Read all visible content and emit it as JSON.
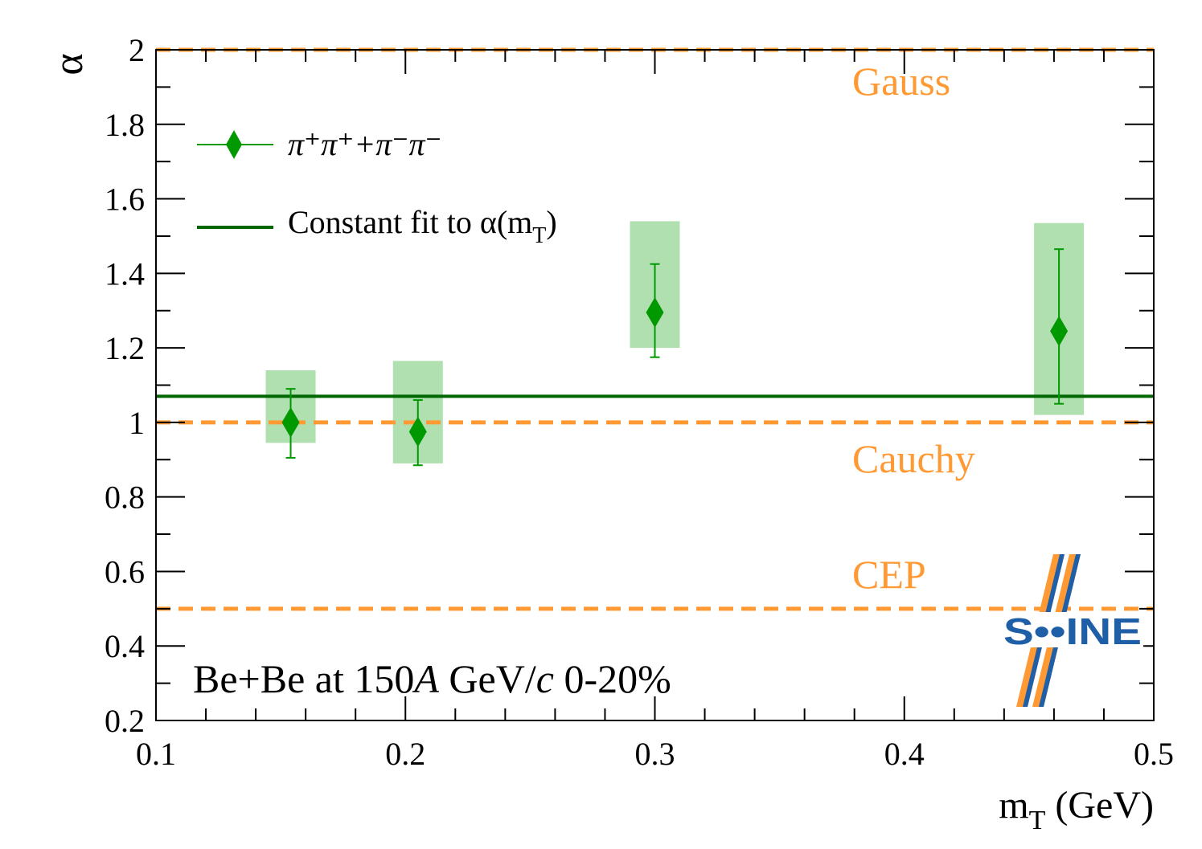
{
  "chart_data": {
    "type": "scatter",
    "xlabel": "m",
    "xlabel_sub": "T",
    "xlabel_unit": " (GeV)",
    "ylabel": "α",
    "xlim": [
      0.1,
      0.5
    ],
    "ylim": [
      0.2,
      2.0
    ],
    "x_ticks": [
      "0.1",
      "0.2",
      "0.3",
      "0.4",
      "0.5"
    ],
    "y_ticks": [
      "0.2",
      "0.4",
      "0.6",
      "0.8",
      "1",
      "1.2",
      "1.4",
      "1.6",
      "1.8",
      "2"
    ],
    "series": [
      {
        "name": "π⁺π⁺+π⁻π⁻",
        "color": "#009900",
        "syst_color": "#b0e0b0",
        "points": [
          {
            "x": 0.154,
            "y": 1.0,
            "stat_lo": 0.905,
            "stat_hi": 1.09,
            "sys_lo": 0.945,
            "sys_hi": 1.14,
            "sys_x_lo": 0.144,
            "sys_x_hi": 0.164
          },
          {
            "x": 0.205,
            "y": 0.975,
            "stat_lo": 0.885,
            "stat_hi": 1.06,
            "sys_lo": 0.89,
            "sys_hi": 1.165,
            "sys_x_lo": 0.195,
            "sys_x_hi": 0.215
          },
          {
            "x": 0.3,
            "y": 1.295,
            "stat_lo": 1.175,
            "stat_hi": 1.425,
            "sys_lo": 1.2,
            "sys_hi": 1.54,
            "sys_x_lo": 0.29,
            "sys_x_hi": 0.31
          },
          {
            "x": 0.462,
            "y": 1.245,
            "stat_lo": 1.05,
            "stat_hi": 1.465,
            "sys_lo": 1.02,
            "sys_hi": 1.535,
            "sys_x_lo": 0.452,
            "sys_x_hi": 0.472
          }
        ]
      }
    ],
    "fit": {
      "name": "Constant fit to α(mT)",
      "value": 1.07,
      "color": "#006600"
    },
    "reference_lines": [
      {
        "label": "Gauss",
        "value": 2.0,
        "color": "#ff9933"
      },
      {
        "label": "Cauchy",
        "value": 1.0,
        "color": "#ff9933"
      },
      {
        "label": "CEP",
        "value": 0.5,
        "color": "#ff9933"
      }
    ],
    "legend": {
      "position": "top-left",
      "series_label": "π⁺π⁺+π⁻π⁻",
      "fit_label_main": "Constant fit to α(m",
      "fit_label_sub": "T",
      "fit_label_end": ")"
    },
    "annotation_parts": [
      "Be+Be at 150",
      "A",
      " GeV/",
      "c",
      " 0-20%"
    ],
    "logo": {
      "text": "S••INE",
      "stripe_color": "#ff9933",
      "text_color": "#1f5fa8"
    }
  }
}
